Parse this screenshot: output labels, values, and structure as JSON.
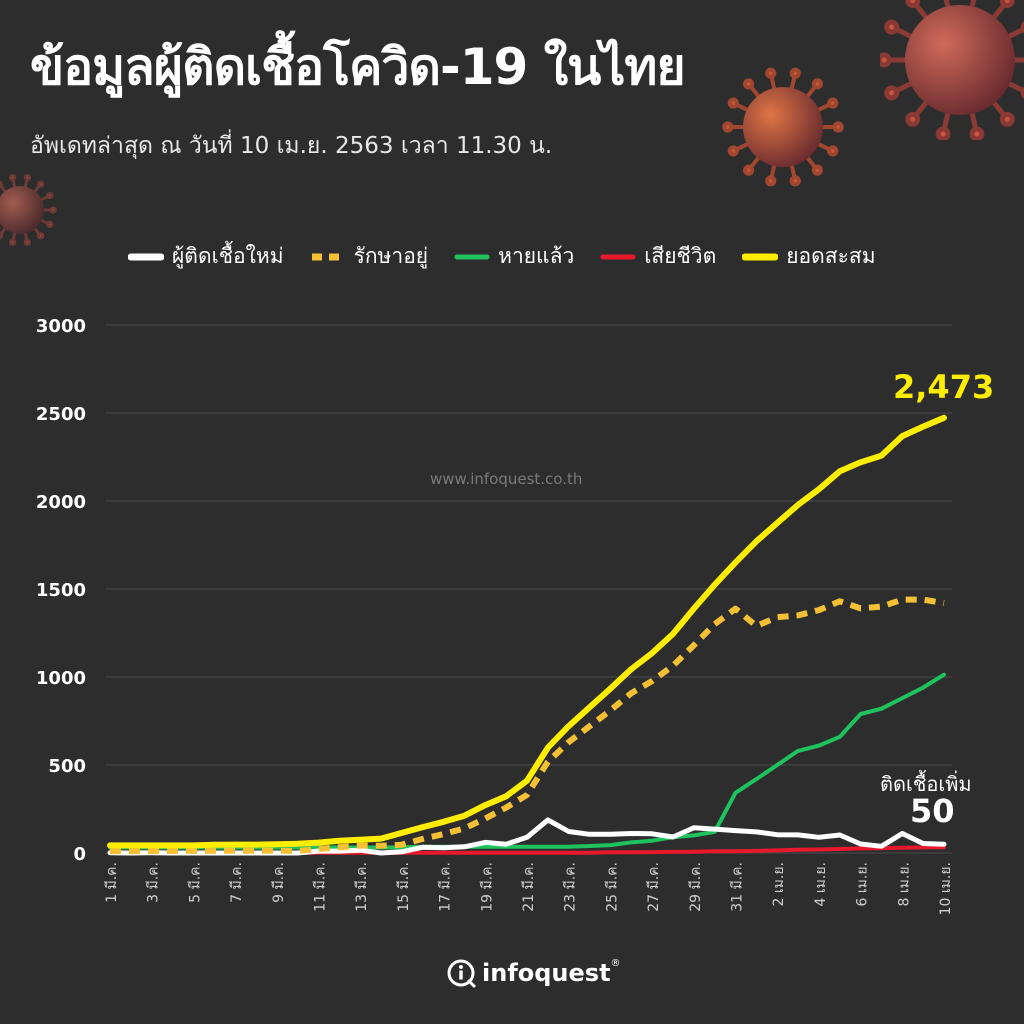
{
  "title": "ข้อมูลผู้ติดเชื้อโควิด-19 ในไทย",
  "subtitle": "อัพเดทล่าสุด ณ วันที่ 10 เม.ย. 2563 เวลา 11.30 น.",
  "watermark": "www.infoquest.co.th",
  "callout": {
    "label": "ติดเชื้อเพิ่ม",
    "value": "50"
  },
  "final_total_label": "2,473",
  "footer": {
    "brand": "infoquest",
    "reg": "®"
  },
  "colors": {
    "new": "#ffffff",
    "active": "#f5c033",
    "recovered": "#1ec35e",
    "deaths": "#e8192c",
    "total": "#ffee00"
  },
  "chart_data": {
    "type": "line",
    "title": "ข้อมูลผู้ติดเชื้อโควิด-19 ในไทย",
    "xlabel": "",
    "ylabel": "",
    "ylim": [
      0,
      3000
    ],
    "yticks": [
      "0",
      "500",
      "1000",
      "1500",
      "2000",
      "2500",
      "3000"
    ],
    "grid": true,
    "legend_position": "top",
    "x_tick_labels": [
      "1 มี.ค.",
      "3 มี.ค.",
      "5 มี.ค.",
      "7 มี.ค.",
      "9 มี.ค.",
      "11 มี.ค.",
      "13 มี.ค.",
      "15 มี.ค.",
      "17 มี.ค.",
      "19 มี.ค.",
      "21 มี.ค.",
      "23 มี.ค.",
      "25 มี.ค.",
      "27 มี.ค.",
      "29 มี.ค.",
      "31 มี.ค.",
      "2 เม.ย.",
      "4 เม.ย.",
      "6 เม.ย.",
      "8 เม.ย.",
      "10 เม.ย."
    ],
    "x": [
      "1 มี.ค.",
      "2 มี.ค.",
      "3 มี.ค.",
      "4 มี.ค.",
      "5 มี.ค.",
      "6 มี.ค.",
      "7 มี.ค.",
      "8 มี.ค.",
      "9 มี.ค.",
      "10 มี.ค.",
      "11 มี.ค.",
      "12 มี.ค.",
      "13 มี.ค.",
      "14 มี.ค.",
      "15 มี.ค.",
      "16 มี.ค.",
      "17 มี.ค.",
      "18 มี.ค.",
      "19 มี.ค.",
      "20 มี.ค.",
      "21 มี.ค.",
      "22 มี.ค.",
      "23 มี.ค.",
      "24 มี.ค.",
      "25 มี.ค.",
      "26 มี.ค.",
      "27 มี.ค.",
      "28 มี.ค.",
      "29 มี.ค.",
      "30 มี.ค.",
      "31 มี.ค.",
      "1 เม.ย.",
      "2 เม.ย.",
      "3 เม.ย.",
      "4 เม.ย.",
      "5 เม.ย.",
      "6 เม.ย.",
      "7 เม.ย.",
      "8 เม.ย.",
      "9 เม.ย.",
      "10 เม.ย."
    ],
    "series": [
      {
        "name": "ผู้ติดเชื้อใหม่",
        "key": "new",
        "style": "solid",
        "values": [
          1,
          0,
          1,
          0,
          0,
          0,
          0,
          0,
          0,
          0,
          11,
          11,
          16,
          0,
          7,
          33,
          30,
          35,
          60,
          50,
          89,
          188,
          122,
          106,
          107,
          111,
          109,
          91,
          143,
          136,
          127,
          120,
          104,
          103,
          89,
          102,
          51,
          38,
          111,
          54,
          50
        ]
      },
      {
        "name": "รักษาอยู่",
        "key": "active",
        "style": "dashed",
        "values": [
          11,
          11,
          11,
          12,
          12,
          12,
          13,
          13,
          13,
          12,
          23,
          33,
          42,
          41,
          47,
          80,
          108,
          140,
          196,
          258,
          330,
          518,
          630,
          720,
          810,
          908,
          977,
          1064,
          1180,
          1300,
          1388,
          1290,
          1340,
          1350,
          1380,
          1430,
          1390,
          1400,
          1440,
          1440,
          1420
        ]
      },
      {
        "name": "หายแล้ว",
        "key": "recovered",
        "style": "solid",
        "values": [
          31,
          31,
          31,
          31,
          31,
          31,
          31,
          31,
          31,
          31,
          31,
          31,
          31,
          31,
          32,
          35,
          35,
          35,
          35,
          35,
          35,
          35,
          35,
          40,
          45,
          60,
          70,
          90,
          100,
          120,
          342,
          420,
          500,
          580,
          610,
          660,
          790,
          820,
          880,
          940,
          1013
        ]
      },
      {
        "name": "เสียชีวิต",
        "key": "deaths",
        "style": "solid",
        "values": [
          1,
          1,
          1,
          1,
          1,
          1,
          1,
          1,
          1,
          1,
          1,
          1,
          1,
          1,
          1,
          1,
          1,
          1,
          1,
          1,
          1,
          1,
          1,
          1,
          4,
          4,
          5,
          6,
          7,
          10,
          10,
          12,
          15,
          19,
          20,
          23,
          26,
          27,
          30,
          32,
          33
        ]
      },
      {
        "name": "ยอดสะสม",
        "key": "total",
        "style": "solid",
        "values": [
          43,
          43,
          43,
          43,
          43,
          47,
          48,
          48,
          50,
          53,
          59,
          70,
          75,
          82,
          114,
          147,
          177,
          212,
          272,
          322,
          411,
          599,
          721,
          827,
          934,
          1045,
          1136,
          1245,
          1388,
          1524,
          1651,
          1771,
          1875,
          1978,
          2067,
          2169,
          2220,
          2258,
          2369,
          2423,
          2473
        ]
      }
    ]
  }
}
